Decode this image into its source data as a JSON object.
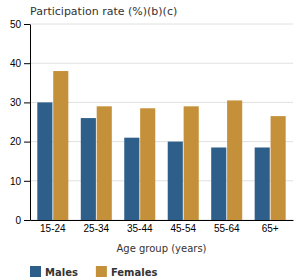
{
  "chart_data": {
    "type": "bar",
    "title": "Participation rate (%)(b)(c)",
    "xlabel": "Age group (years)",
    "categories": [
      "15-24",
      "25-34",
      "35-44",
      "45-54",
      "55-64",
      "65+"
    ],
    "series": [
      {
        "name": "Males",
        "color": "#2E5F8A",
        "values": [
          30.0,
          26.0,
          21.0,
          20.0,
          18.5,
          18.5
        ]
      },
      {
        "name": "Females",
        "color": "#C4903A",
        "values": [
          38.0,
          29.0,
          28.5,
          29.0,
          30.5,
          26.5
        ]
      }
    ],
    "ylim": [
      0,
      50
    ],
    "yticks": [
      0,
      10,
      20,
      30,
      40,
      50
    ],
    "grid": true,
    "legend": "bottom"
  }
}
